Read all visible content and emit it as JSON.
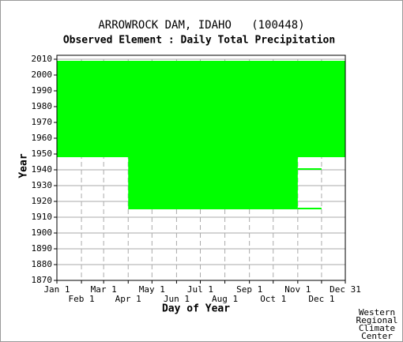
{
  "chart_data": {
    "type": "availability",
    "title": "ARROWROCK DAM, IDAHO   (100448)",
    "subtitle": "Observed Element : Daily Total Precipitation",
    "xlabel": "Day of Year",
    "ylabel": "Year",
    "color": "#00ff00",
    "grid": true,
    "xlim": [
      1,
      365
    ],
    "ylim": [
      1870,
      2010
    ],
    "yticks": [
      1870,
      1880,
      1890,
      1900,
      1910,
      1920,
      1930,
      1940,
      1950,
      1960,
      1970,
      1980,
      1990,
      2000,
      2010
    ],
    "xticks": [
      {
        "value": 1,
        "label": "Jan 1"
      },
      {
        "value": 32,
        "label": "Feb 1"
      },
      {
        "value": 60,
        "label": "Mar 1"
      },
      {
        "value": 91,
        "label": "Apr 1"
      },
      {
        "value": 121,
        "label": "May 1"
      },
      {
        "value": 152,
        "label": "Jun 1"
      },
      {
        "value": 182,
        "label": "Jul 1"
      },
      {
        "value": 213,
        "label": "Aug 1"
      },
      {
        "value": 244,
        "label": "Sep 1"
      },
      {
        "value": 274,
        "label": "Oct 1"
      },
      {
        "value": 305,
        "label": "Nov 1"
      },
      {
        "value": 335,
        "label": "Dec 1"
      },
      {
        "value": 365,
        "label": "Dec 31"
      }
    ],
    "blocks": [
      {
        "days": [
          1,
          365
        ],
        "years": [
          1948,
          2009
        ]
      },
      {
        "days": [
          91,
          305
        ],
        "years": [
          1915,
          1948
        ]
      },
      {
        "days": [
          305,
          335
        ],
        "years": [
          1915,
          1916
        ]
      },
      {
        "days": [
          305,
          335
        ],
        "years": [
          1940,
          1941
        ]
      }
    ],
    "credit": [
      "Western",
      "Regional",
      "Climate",
      "Center"
    ]
  }
}
